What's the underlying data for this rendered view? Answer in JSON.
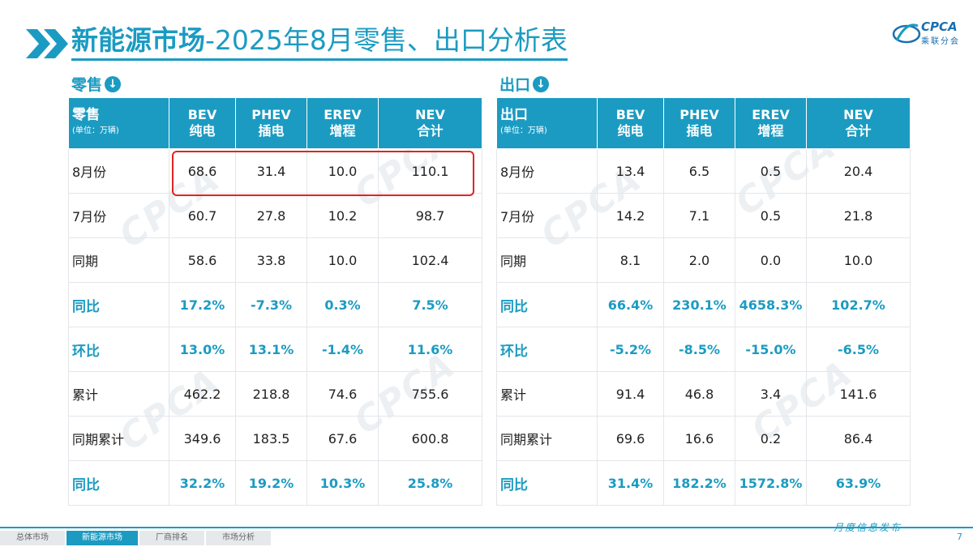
{
  "header": {
    "title_bold": "新能源市场",
    "title_rest": "-2025年8月零售、出口分析表",
    "logo_text": "CPCA",
    "logo_sub": "乘联分会"
  },
  "watermark": "CPCA",
  "sections": {
    "retail": "零售",
    "export": "出口",
    "arrow": "↓"
  },
  "retail": {
    "head_main": "零售",
    "head_unit": "(单位：万辆)",
    "columns": [
      {
        "top": "BEV",
        "bottom": "纯电"
      },
      {
        "top": "PHEV",
        "bottom": "插电"
      },
      {
        "top": "EREV",
        "bottom": "增程"
      },
      {
        "top": "NEV",
        "bottom": "合计"
      }
    ],
    "rows": [
      {
        "label": "8月份",
        "values": [
          "68.6",
          "31.4",
          "10.0",
          "110.1"
        ]
      },
      {
        "label": "7月份",
        "values": [
          "60.7",
          "27.8",
          "10.2",
          "98.7"
        ]
      },
      {
        "label": "同期",
        "values": [
          "58.6",
          "33.8",
          "10.0",
          "102.4"
        ]
      },
      {
        "label": "同比",
        "values": [
          "17.2%",
          "-7.3%",
          "0.3%",
          "7.5%"
        ]
      },
      {
        "label": "环比",
        "values": [
          "13.0%",
          "13.1%",
          "-1.4%",
          "11.6%"
        ]
      },
      {
        "label": "累计",
        "values": [
          "462.2",
          "218.8",
          "74.6",
          "755.6"
        ]
      },
      {
        "label": "同期累计",
        "values": [
          "349.6",
          "183.5",
          "67.6",
          "600.8"
        ]
      },
      {
        "label": "同比",
        "values": [
          "32.2%",
          "19.2%",
          "10.3%",
          "25.8%"
        ]
      }
    ]
  },
  "export": {
    "head_main": "出口",
    "head_unit": "(单位：万辆)",
    "columns": [
      {
        "top": "BEV",
        "bottom": "纯电"
      },
      {
        "top": "PHEV",
        "bottom": "插电"
      },
      {
        "top": "EREV",
        "bottom": "增程"
      },
      {
        "top": "NEV",
        "bottom": "合计"
      }
    ],
    "rows": [
      {
        "label": "8月份",
        "values": [
          "13.4",
          "6.5",
          "0.5",
          "20.4"
        ]
      },
      {
        "label": "7月份",
        "values": [
          "14.2",
          "7.1",
          "0.5",
          "21.8"
        ]
      },
      {
        "label": "同期",
        "values": [
          "8.1",
          "2.0",
          "0.0",
          "10.0"
        ]
      },
      {
        "label": "同比",
        "values": [
          "66.4%",
          "230.1%",
          "4658.3%",
          "102.7%"
        ]
      },
      {
        "label": "环比",
        "values": [
          "-5.2%",
          "-8.5%",
          "-15.0%",
          "-6.5%"
        ]
      },
      {
        "label": "累计",
        "values": [
          "91.4",
          "46.8",
          "3.4",
          "141.6"
        ]
      },
      {
        "label": "同期累计",
        "values": [
          "69.6",
          "16.6",
          "0.2",
          "86.4"
        ]
      },
      {
        "label": "同比",
        "values": [
          "31.4%",
          "182.2%",
          "1572.8%",
          "63.9%"
        ]
      }
    ]
  },
  "footer": {
    "tabs": [
      "总体市场",
      "新能源市场",
      "厂商排名",
      "市场分析"
    ],
    "active_tab": "新能源市场",
    "right_text": "月度信息发布",
    "page": "7"
  },
  "colors": {
    "accent": "#1b9bc2",
    "highlight_box": "#e02424"
  }
}
